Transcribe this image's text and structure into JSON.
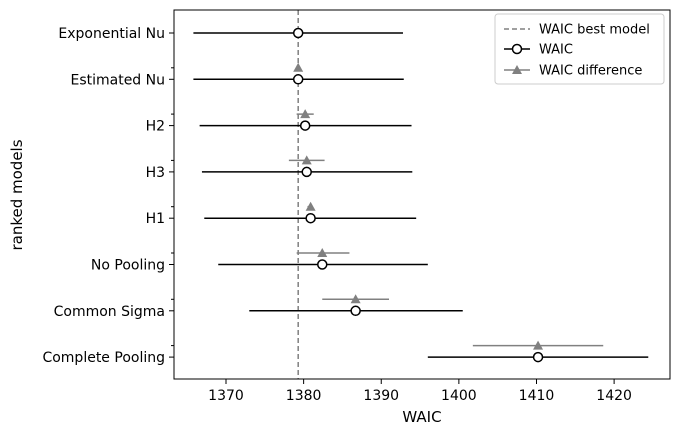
{
  "chart_data": {
    "type": "errorbar",
    "xlabel": "WAIC",
    "ylabel": "ranked models",
    "xlim": [
      1363.3,
      1427.2
    ],
    "xticks": [
      1370,
      1380,
      1390,
      1400,
      1410,
      1420
    ],
    "best_waic": 1379.3,
    "legend": {
      "position": "top-right",
      "entries": [
        "WAIC best model",
        "WAIC",
        "WAIC difference"
      ]
    },
    "models": [
      {
        "name": "Exponential Nu",
        "waic": 1379.3,
        "waic_lo": 1365.8,
        "waic_hi": 1392.8,
        "diff": null,
        "diff_lo": null,
        "diff_hi": null
      },
      {
        "name": "Estimated Nu",
        "waic": 1379.3,
        "waic_lo": 1365.8,
        "waic_hi": 1392.9,
        "diff": 1379.3,
        "diff_lo": 1379.1,
        "diff_hi": 1379.5
      },
      {
        "name": "H2",
        "waic": 1380.2,
        "waic_lo": 1366.6,
        "waic_hi": 1393.9,
        "diff": 1380.2,
        "diff_lo": 1379.1,
        "diff_hi": 1381.3
      },
      {
        "name": "H3",
        "waic": 1380.4,
        "waic_lo": 1366.9,
        "waic_hi": 1394.0,
        "diff": 1380.4,
        "diff_lo": 1378.1,
        "diff_hi": 1382.7
      },
      {
        "name": "H1",
        "waic": 1380.9,
        "waic_lo": 1367.2,
        "waic_hi": 1394.5,
        "diff": 1380.9,
        "diff_lo": 1380.5,
        "diff_hi": 1381.2
      },
      {
        "name": "No Pooling",
        "waic": 1382.4,
        "waic_lo": 1369.0,
        "waic_hi": 1396.0,
        "diff": 1382.4,
        "diff_lo": 1379.1,
        "diff_hi": 1385.9
      },
      {
        "name": "Common Sigma",
        "waic": 1386.7,
        "waic_lo": 1373.0,
        "waic_hi": 1400.5,
        "diff": 1386.7,
        "diff_lo": 1382.4,
        "diff_hi": 1391.0
      },
      {
        "name": "Complete Pooling",
        "waic": 1410.2,
        "waic_lo": 1396.0,
        "waic_hi": 1424.4,
        "diff": 1410.2,
        "diff_lo": 1401.8,
        "diff_hi": 1418.6
      }
    ],
    "colors": {
      "waic_bar": "#000000",
      "diff": "#808080",
      "best_line": "#808080"
    }
  }
}
